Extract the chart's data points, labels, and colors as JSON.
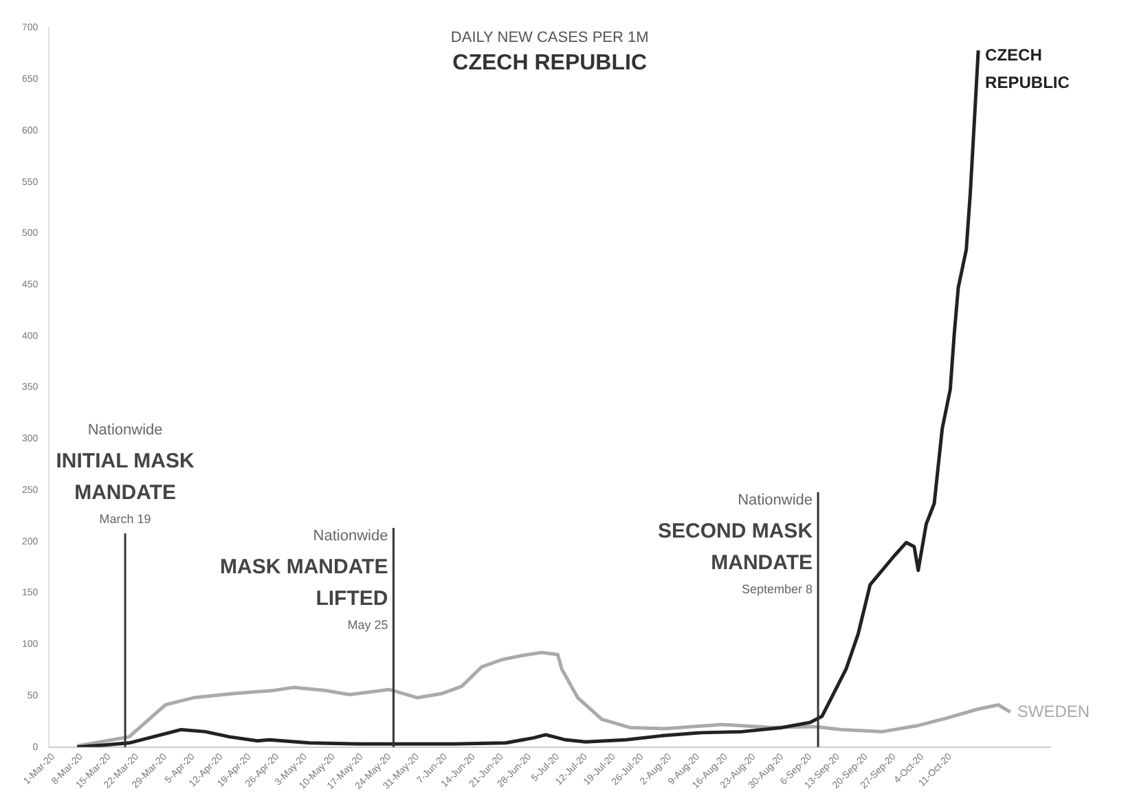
{
  "chart_data": {
    "type": "line",
    "title": "CZECH REPUBLIC",
    "subtitle": "DAILY NEW CASES PER 1M",
    "series": [
      {
        "name": "CZECH REPUBLIC",
        "color": "#222222",
        "x": [
          "--03-07",
          "--03-14",
          "--03-20",
          "--03-26",
          "--04-02",
          "--04-08",
          "--04-14",
          "--04-21",
          "--04-24",
          "--05-04",
          "--05-17",
          "--05-27",
          "--06-09",
          "--06-22",
          "--06-29",
          "--07-02",
          "--07-07",
          "--07-12",
          "--07-22",
          "--07-31",
          "--08-10",
          "--08-20",
          "--08-30",
          "--09-06",
          "--09-09",
          "--09-15",
          "--09-18",
          "--09-21",
          "--09-27",
          "--09-30",
          "--10-02",
          "--10-03",
          "--10-05",
          "--10-07",
          "--10-09",
          "--10-11",
          "--10-12",
          "--10-13",
          "--10-15",
          "--10-16",
          "--10-17",
          "--10-18"
        ],
        "values": [
          0,
          2,
          4,
          10,
          17,
          15,
          10,
          6,
          7,
          4,
          3,
          3,
          3,
          4,
          9,
          12,
          7,
          5,
          7,
          11,
          14,
          15,
          19,
          24,
          30,
          76,
          110,
          158,
          186,
          199,
          195,
          172,
          217,
          237,
          310,
          348,
          402,
          447,
          484,
          539,
          608,
          678
        ]
      },
      {
        "name": "SWEDEN",
        "color": "#aaaaaa",
        "x": [
          "--03-07",
          "--03-20",
          "--03-29",
          "--04-05",
          "--04-15",
          "--04-25",
          "--04-30",
          "--05-08",
          "--05-14",
          "--05-24",
          "--05-31",
          "--06-06",
          "--06-11",
          "--06-16",
          "--06-21",
          "--06-26",
          "--07-01",
          "--07-05",
          "--07-06",
          "--07-10",
          "--07-16",
          "--07-23",
          "--08-01",
          "--08-15",
          "--08-28",
          "--09-07",
          "--09-14",
          "--09-24",
          "--10-03",
          "--10-10",
          "--10-18",
          "--10-23",
          "--10-26"
        ],
        "values": [
          1,
          10,
          41,
          48,
          52,
          55,
          58,
          55,
          51,
          56,
          48,
          52,
          59,
          78,
          85,
          89,
          92,
          90,
          76,
          48,
          27,
          19,
          18,
          22,
          19,
          20,
          17,
          15,
          21,
          28,
          37,
          41,
          34
        ]
      }
    ],
    "xlim": [
      "--02-29",
      "--11-05"
    ],
    "xticks": [
      {
        "value": "--03-01",
        "label": "1-Mar-20"
      },
      {
        "value": "--03-08",
        "label": "8-Mar-20"
      },
      {
        "value": "--03-15",
        "label": "15-Mar-20"
      },
      {
        "value": "--03-22",
        "label": "22-Mar-20"
      },
      {
        "value": "--03-29",
        "label": "29-Mar-20"
      },
      {
        "value": "--04-05",
        "label": "5-Apr-20"
      },
      {
        "value": "--04-12",
        "label": "12-Apr-20"
      },
      {
        "value": "--04-19",
        "label": "19-Apr-20"
      },
      {
        "value": "--04-26",
        "label": "26-Apr-20"
      },
      {
        "value": "--05-03",
        "label": "3-May-20"
      },
      {
        "value": "--05-10",
        "label": "10-May-20"
      },
      {
        "value": "--05-17",
        "label": "17-May-20"
      },
      {
        "value": "--05-24",
        "label": "24-May-20"
      },
      {
        "value": "--05-31",
        "label": "31-May-20"
      },
      {
        "value": "--06-07",
        "label": "7-Jun-20"
      },
      {
        "value": "--06-14",
        "label": "14-Jun-20"
      },
      {
        "value": "--06-21",
        "label": "21-Jun-20"
      },
      {
        "value": "--06-28",
        "label": "28-Jun-20"
      },
      {
        "value": "--07-05",
        "label": "5-Jul-20"
      },
      {
        "value": "--07-12",
        "label": "12-Jul-20"
      },
      {
        "value": "--07-19",
        "label": "19-Jul-20"
      },
      {
        "value": "--07-26",
        "label": "26-Jul-20"
      },
      {
        "value": "--08-02",
        "label": "2-Aug-20"
      },
      {
        "value": "--08-09",
        "label": "9-Aug-20"
      },
      {
        "value": "--08-16",
        "label": "16-Aug-20"
      },
      {
        "value": "--08-23",
        "label": "23-Aug-20"
      },
      {
        "value": "--08-30",
        "label": "30-Aug-20"
      },
      {
        "value": "--09-06",
        "label": "6-Sep-20"
      },
      {
        "value": "--09-13",
        "label": "13-Sep-20"
      },
      {
        "value": "--09-20",
        "label": "20-Sep-20"
      },
      {
        "value": "--09-27",
        "label": "27-Sep-20"
      },
      {
        "value": "--10-04",
        "label": "4-Oct-20"
      },
      {
        "value": "--10-11",
        "label": "11-Oct-20"
      }
    ],
    "ylim": [
      0,
      700
    ],
    "yticks": [
      0,
      50,
      100,
      150,
      200,
      250,
      300,
      350,
      400,
      450,
      500,
      550,
      600,
      650,
      700
    ],
    "grid": false,
    "legend": false,
    "marker": "none",
    "line_style": "solid",
    "ref_lines": [
      {
        "axis": "x",
        "value": "--03-19",
        "label": "INITIAL MASK MANDATE"
      },
      {
        "axis": "x",
        "value": "--05-25",
        "label": "MASK MANDATE LIFTED"
      },
      {
        "axis": "x",
        "value": "--09-08",
        "label": "SECOND MASK MANDATE"
      }
    ],
    "annotations": [
      "Nationwide",
      "March 19",
      "Nationwide",
      "May 25",
      "Nationwide",
      "September 8"
    ]
  }
}
